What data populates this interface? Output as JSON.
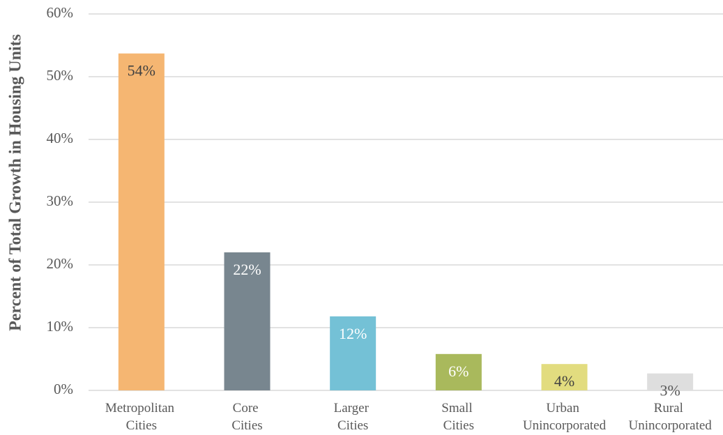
{
  "chart_data": {
    "type": "bar",
    "y_axis_label": "Percent of Total Growth in Housing Units",
    "categories": [
      "Metropolitan Cities",
      "Core Cities",
      "Larger Cities",
      "Small Cities",
      "Urban Unincorporated",
      "Rural Unincorporated"
    ],
    "values": [
      53.7,
      22,
      11.8,
      5.8,
      4.2,
      2.7
    ],
    "value_labels": [
      "54%",
      "22%",
      "12%",
      "6%",
      "4%",
      "3%"
    ],
    "colors": [
      "#f5b672",
      "#78868f",
      "#74c1d6",
      "#a9b95c",
      "#e2dc7f",
      "#dedede"
    ],
    "value_label_colors": [
      "#404040",
      "#ffffff",
      "#ffffff",
      "#ffffff",
      "#404040",
      "#595959"
    ],
    "ylim": [
      0,
      60
    ],
    "yticks": [
      {
        "value": 0,
        "label": "0%"
      },
      {
        "value": 10,
        "label": "10%"
      },
      {
        "value": 20,
        "label": "20%"
      },
      {
        "value": 30,
        "label": "30%"
      },
      {
        "value": 40,
        "label": "40%"
      },
      {
        "value": 50,
        "label": "50%"
      },
      {
        "value": 60,
        "label": "60%"
      }
    ],
    "grid": true
  }
}
